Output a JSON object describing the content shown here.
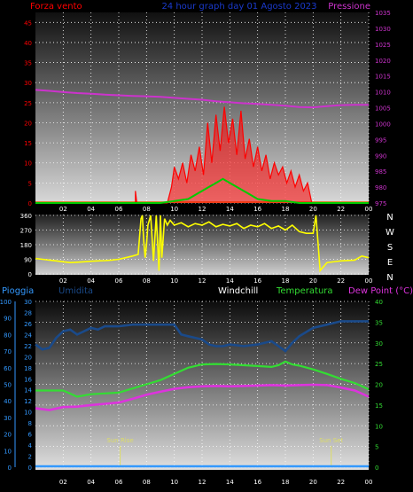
{
  "colors": {
    "background": "#000000",
    "wind": "#ff0000",
    "gust": "#00cc00",
    "pressure": "#cc33cc",
    "direction": "#ffff00",
    "humidity": "#1a4a8a",
    "temperature": "#33dd33",
    "dewpoint": "#dd33dd",
    "rain": "#3399ff",
    "windchill": "#ffffff",
    "sun": "#dddd66",
    "grid": "#ffffff"
  },
  "chart_data": [
    {
      "type": "line",
      "title": "24 hour graph day  01 Agosto 2023",
      "ylabel_left": "Forza vento",
      "ylabel_right": "Pressione",
      "x_ticks": [
        "02",
        "04",
        "06",
        "08",
        "10",
        "12",
        "14",
        "16",
        "18",
        "20",
        "22",
        "00"
      ],
      "y_left_ticks": [
        0,
        5,
        10,
        15,
        20,
        25,
        30,
        35,
        40,
        45
      ],
      "y_left_range": [
        0,
        47.5
      ],
      "y_right_ticks": [
        975,
        980,
        985,
        990,
        995,
        1000,
        1005,
        1010,
        1015,
        1020,
        1025,
        1030,
        1035
      ],
      "y_right_range": [
        975,
        1035
      ],
      "series": [
        {
          "key": "pressure",
          "x": [
            0,
            1,
            2,
            3,
            4,
            5,
            6,
            7,
            8,
            9,
            10,
            11,
            12,
            13,
            14,
            15,
            16,
            17,
            18,
            19,
            20,
            21,
            22,
            23,
            24
          ],
          "values": [
            1010.6,
            1010.3,
            1009.9,
            1009.6,
            1009.4,
            1009.1,
            1008.9,
            1008.7,
            1008.6,
            1008.4,
            1008.1,
            1007.8,
            1007.5,
            1007.0,
            1006.7,
            1006.4,
            1006.2,
            1005.9,
            1005.6,
            1005.2,
            1005.1,
            1005.5,
            1005.8,
            1005.9,
            1005.9
          ]
        },
        {
          "key": "wind",
          "x": [
            7.2,
            7.2,
            7.3,
            7.3,
            9.5,
            9.8,
            10.0,
            10.3,
            10.6,
            10.9,
            11.2,
            11.5,
            11.8,
            12.1,
            12.4,
            12.7,
            13.0,
            13.3,
            13.6,
            13.9,
            14.2,
            14.5,
            14.8,
            15.1,
            15.4,
            15.7,
            16.0,
            16.3,
            16.6,
            16.9,
            17.2,
            17.5,
            17.8,
            18.1,
            18.4,
            18.7,
            19.0,
            19.3,
            19.6,
            19.9,
            20.0,
            24.0
          ],
          "values": [
            0,
            3,
            0,
            0,
            0,
            4,
            9,
            6,
            10,
            5,
            12,
            8,
            14,
            7,
            20,
            10,
            22,
            13,
            24,
            15,
            21,
            12,
            23,
            11,
            16,
            9,
            14,
            8,
            12,
            6,
            10,
            7,
            9,
            5,
            8,
            4,
            7,
            3,
            5,
            0,
            0,
            0
          ]
        },
        {
          "key": "gust",
          "x": [
            0,
            8.0,
            9.0,
            10.0,
            11.0,
            12.0,
            12.5,
            13.0,
            13.5,
            14.0,
            14.5,
            15.0,
            15.5,
            16.0,
            17.0,
            18.0,
            19.0,
            24.0
          ],
          "values": [
            0,
            0,
            0,
            0.5,
            1,
            3,
            4,
            5,
            6,
            5,
            4,
            3,
            2,
            1,
            0.5,
            0.5,
            0,
            0
          ]
        }
      ]
    },
    {
      "type": "line",
      "ylabel_right": "N W S E N",
      "direction_labels": [
        "N",
        "W",
        "S",
        "E",
        "N"
      ],
      "y_ticks": [
        0,
        90,
        180,
        270,
        360
      ],
      "y_range": [
        0,
        360
      ],
      "x_ticks": [
        "02",
        "04",
        "06",
        "08",
        "10",
        "12",
        "14",
        "16",
        "18",
        "20",
        "22",
        "00"
      ],
      "series": [
        {
          "key": "direction",
          "x": [
            0,
            0.5,
            1,
            1.5,
            2,
            2.5,
            3,
            3.5,
            4,
            4.5,
            5,
            5.5,
            6,
            6.5,
            7,
            7.2,
            7.4,
            7.6,
            7.7,
            7.8,
            7.9,
            8.0,
            8.1,
            8.3,
            8.5,
            8.7,
            8.9,
            9.0,
            9.1,
            9.3,
            9.5,
            9.7,
            9.9,
            10.0,
            10.5,
            11,
            11.5,
            12,
            12.5,
            13,
            13.5,
            14,
            14.5,
            15,
            15.5,
            16,
            16.5,
            17,
            17.5,
            18,
            18.5,
            19,
            19.5,
            20,
            20.2,
            20.5,
            21,
            22,
            23,
            23.5,
            24
          ],
          "values": [
            95,
            90,
            85,
            80,
            75,
            70,
            72,
            75,
            78,
            80,
            82,
            85,
            90,
            100,
            110,
            115,
            120,
            340,
            360,
            200,
            100,
            180,
            300,
            360,
            80,
            360,
            20,
            360,
            100,
            340,
            300,
            330,
            310,
            300,
            315,
            290,
            310,
            300,
            320,
            290,
            305,
            295,
            310,
            280,
            300,
            290,
            310,
            280,
            295,
            270,
            300,
            260,
            250,
            250,
            360,
            20,
            70,
            80,
            85,
            110,
            100
          ]
        }
      ]
    },
    {
      "type": "line",
      "legend": [
        "Pioggia",
        "Umidita",
        "Windchill",
        "Temperatura",
        "Dew Point (°C)"
      ],
      "annotations": [
        "Sun Rise",
        "Sun Set"
      ],
      "sun_rise_hour": 6.1,
      "sun_set_hour": 21.3,
      "x_ticks": [
        "02",
        "04",
        "06",
        "08",
        "10",
        "12",
        "14",
        "16",
        "18",
        "20",
        "22",
        "00"
      ],
      "rain_ticks": [
        0,
        2,
        4,
        6,
        8,
        10,
        12,
        14,
        16,
        18,
        20,
        22,
        24,
        26,
        28,
        30
      ],
      "humidity_ticks": [
        0,
        10,
        20,
        30,
        40,
        50,
        60,
        70,
        80,
        90,
        100
      ],
      "temp_ticks": [
        0,
        5,
        10,
        15,
        20,
        25,
        30,
        35,
        40
      ],
      "temp_range": [
        0,
        40
      ],
      "series": [
        {
          "key": "humidity",
          "x": [
            0,
            0.5,
            1,
            1.5,
            2,
            2.5,
            3,
            3.5,
            4,
            4.5,
            5,
            6,
            7,
            8,
            9,
            10,
            10.5,
            11,
            11.5,
            12,
            12.5,
            13,
            13.5,
            14,
            15,
            16,
            17,
            17.5,
            18,
            18.5,
            19,
            20,
            21,
            22,
            23,
            24
          ],
          "values": [
            74,
            71,
            72,
            78,
            82,
            83,
            80,
            82,
            84,
            83,
            85,
            85,
            86,
            86,
            86,
            86,
            80,
            79,
            78,
            77,
            74,
            73,
            73,
            74,
            73,
            74,
            76,
            73,
            70,
            75,
            79,
            84,
            86,
            88,
            88,
            88
          ]
        },
        {
          "key": "temperature",
          "x": [
            0,
            1,
            2,
            3,
            4,
            5,
            6,
            7,
            8,
            9,
            10,
            11,
            12,
            13,
            14,
            15,
            16,
            17,
            17.5,
            18,
            18.5,
            19,
            20,
            21,
            22,
            23,
            24
          ],
          "values": [
            18.5,
            18.5,
            18.5,
            17.0,
            17.6,
            17.8,
            18.0,
            19.0,
            20.0,
            21.0,
            22.5,
            24.0,
            24.8,
            24.9,
            24.8,
            24.6,
            24.4,
            24.2,
            24.6,
            25.5,
            24.8,
            24.5,
            23.6,
            22.5,
            21.3,
            20.3,
            18.8
          ]
        },
        {
          "key": "dewpoint",
          "x": [
            0,
            1,
            2,
            3,
            4,
            5,
            6,
            7,
            8,
            9,
            10,
            11,
            12,
            13,
            14,
            15,
            16,
            17,
            18,
            19,
            20,
            21,
            22,
            23,
            24
          ],
          "values": [
            14.2,
            13.8,
            14.5,
            14.6,
            15.0,
            15.3,
            15.6,
            16.5,
            17.5,
            18.2,
            18.9,
            19.3,
            19.5,
            19.6,
            19.5,
            19.6,
            19.7,
            19.8,
            19.7,
            19.8,
            19.9,
            19.8,
            19.2,
            18.5,
            17.0
          ]
        },
        {
          "key": "rain",
          "x": [
            0,
            24
          ],
          "values": [
            0,
            0
          ]
        }
      ]
    }
  ]
}
